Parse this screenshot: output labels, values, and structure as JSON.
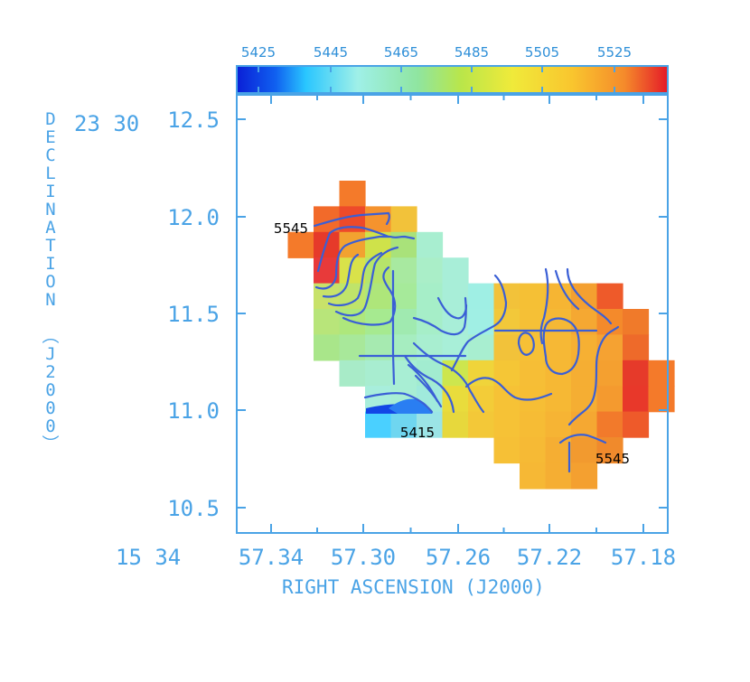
{
  "chart_data": {
    "type": "heatmap",
    "title": "",
    "xlabel": "RIGHT ASCENSION (J2000)",
    "ylabel": "DECLINATION (J2000)",
    "x_tick_prefix": "15 34",
    "x_ticks": [
      "57.34",
      "57.30",
      "57.26",
      "57.22",
      "57.18"
    ],
    "y_tick_prefix": "23 30",
    "y_ticks": [
      "12.5",
      "12.0",
      "11.5",
      "11.0",
      "10.5"
    ],
    "xlim": [
      57.345,
      57.165
    ],
    "ylim": [
      10.45,
      12.75
    ],
    "colorbar": {
      "ticks": [
        "5425",
        "5445",
        "5465",
        "5485",
        "5505",
        "5525"
      ],
      "range": [
        5410,
        5540
      ]
    },
    "annotations": [
      {
        "text": "5545",
        "ra": 57.307,
        "dec": 11.95
      },
      {
        "text": "5415",
        "ra": 57.263,
        "dec": 10.88
      },
      {
        "text": "5545",
        "ra": 57.175,
        "dec": 10.74
      }
    ],
    "contour_color": "#3a5fd6",
    "grid": false
  }
}
